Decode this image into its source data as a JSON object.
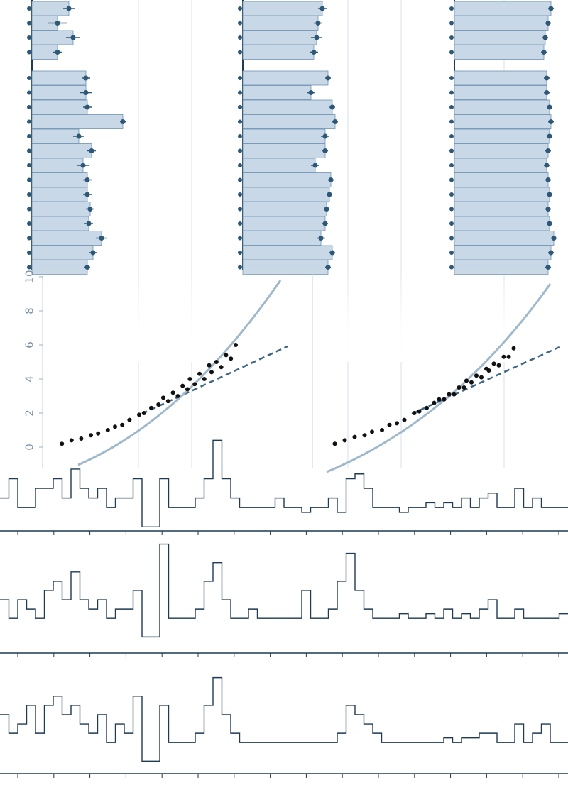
{
  "chart_data": [
    {
      "type": "hbar",
      "xlim": [
        0,
        10
      ],
      "values": [
        2.6,
        1.8,
        2.9,
        1.8,
        3.8,
        3.8,
        3.9,
        6.4,
        3.3,
        4.2,
        3.6,
        3.9,
        3.9,
        4.1,
        4.0,
        4.9,
        4.3,
        3.9
      ],
      "errors": [
        0.4,
        0.7,
        0.5,
        0.3,
        0.3,
        0.4,
        0.3,
        0.2,
        0.4,
        0.3,
        0.4,
        0.3,
        0.3,
        0.3,
        0.3,
        0.4,
        0.3,
        0.2
      ],
      "color": "#c9d8e6"
    },
    {
      "type": "hbar",
      "xlim": [
        0,
        10
      ],
      "values": [
        5.6,
        5.3,
        5.2,
        5.0,
        6.0,
        4.8,
        6.3,
        6.5,
        5.8,
        5.8,
        5.1,
        6.2,
        6.1,
        5.9,
        5.8,
        5.5,
        6.3,
        6.0
      ],
      "errors": [
        0.3,
        0.3,
        0.4,
        0.3,
        0.2,
        0.3,
        0.2,
        0.2,
        0.3,
        0.2,
        0.3,
        0.2,
        0.2,
        0.2,
        0.2,
        0.3,
        0.2,
        0.2
      ],
      "color": "#c9d8e6"
    },
    {
      "type": "hbar",
      "xlim": [
        0,
        10
      ],
      "values": [
        6.8,
        6.6,
        6.4,
        6.3,
        6.5,
        6.5,
        6.7,
        6.8,
        6.7,
        6.6,
        6.5,
        6.6,
        6.7,
        6.6,
        6.7,
        7.0,
        6.8,
        6.6
      ],
      "errors": [
        0.2,
        0.2,
        0.2,
        0.2,
        0.2,
        0.2,
        0.2,
        0.2,
        0.2,
        0.2,
        0.2,
        0.2,
        0.2,
        0.2,
        0.2,
        0.2,
        0.2,
        0.2
      ],
      "color": "#c9d8e6"
    },
    {
      "type": "scatter",
      "xlim": [
        0,
        10
      ],
      "ylim": [
        -1,
        10.5
      ],
      "yticks": [
        0,
        2,
        4,
        6,
        8,
        10
      ],
      "color": "#111111",
      "x": [
        0.8,
        1.2,
        1.6,
        2,
        2.3,
        2.7,
        3,
        3.3,
        3.6,
        4,
        4.2,
        4.5,
        4.8,
        5,
        5.2,
        5.4,
        5.6,
        5.8,
        6,
        6.1,
        6.3,
        6.5,
        6.7,
        6.9,
        7,
        7.2,
        7.4,
        7.6,
        7.8,
        8
      ],
      "y": [
        0.2,
        0.4,
        0.5,
        0.7,
        0.8,
        1.0,
        1.2,
        1.3,
        1.6,
        1.9,
        2.0,
        2.3,
        2.5,
        2.9,
        2.7,
        3.2,
        3.0,
        3.6,
        3.4,
        4.0,
        3.7,
        4.3,
        4.0,
        4.8,
        4.4,
        5.0,
        4.7,
        5.4,
        5.2,
        6.0
      ]
    },
    {
      "type": "scatter",
      "xlim": [
        0,
        10
      ],
      "ylim": [
        -1,
        10.5
      ],
      "color": "#111111",
      "x": [
        0.9,
        1.3,
        1.7,
        2.1,
        2.4,
        2.8,
        3.1,
        3.4,
        3.7,
        4.1,
        4.3,
        4.6,
        4.9,
        5.1,
        5.3,
        5.5,
        5.7,
        5.9,
        6.1,
        6.2,
        6.4,
        6.6,
        6.8,
        7,
        7.1,
        7.3,
        7.5,
        7.7,
        7.9,
        8.1
      ],
      "y": [
        0.2,
        0.4,
        0.6,
        0.7,
        0.9,
        1.0,
        1.3,
        1.4,
        1.6,
        2.0,
        2.1,
        2.3,
        2.6,
        2.8,
        2.8,
        3.1,
        3.1,
        3.5,
        3.5,
        3.9,
        3.8,
        4.2,
        4.1,
        4.6,
        4.5,
        4.9,
        4.8,
        5.3,
        5.3,
        5.8
      ]
    },
    {
      "type": "step",
      "ylim": [
        -1.2,
        9.5
      ],
      "color": "#1f3a52",
      "values": [
        2,
        4,
        1,
        1,
        3,
        3,
        4,
        2,
        5,
        3,
        2,
        3,
        1,
        2,
        2,
        4,
        -1,
        -1,
        4,
        1,
        1,
        1,
        2,
        4,
        8,
        4,
        2,
        1,
        1,
        1,
        1,
        2,
        1,
        1,
        0.5,
        1,
        1,
        2,
        0.5,
        4,
        4.5,
        3,
        1,
        1,
        1,
        0.5,
        1,
        1,
        1.5,
        1,
        1.5,
        1,
        2,
        1,
        2,
        2.5,
        1,
        1,
        3,
        1,
        2,
        1,
        1,
        1
      ]
    },
    {
      "type": "step",
      "ylim": [
        -1.2,
        9.5
      ],
      "color": "#1f3a52",
      "values": [
        3,
        1,
        3,
        2,
        1,
        4,
        5,
        3,
        6,
        3,
        2,
        3,
        1,
        2,
        2,
        4,
        -1,
        -1,
        9,
        1,
        1,
        1,
        2,
        5,
        7,
        3,
        1,
        1,
        2,
        1,
        1,
        1,
        1,
        1,
        4,
        1,
        1,
        2,
        5,
        8,
        4,
        2,
        1,
        1,
        1,
        1.5,
        1,
        1,
        1.5,
        1,
        2,
        1,
        1.5,
        1,
        2,
        3,
        1,
        1,
        2,
        1,
        1,
        1,
        1,
        1.5
      ]
    },
    {
      "type": "step",
      "ylim": [
        -1.2,
        9.5
      ],
      "color": "#1f3a52",
      "values": [
        4,
        2,
        3,
        5,
        2,
        5,
        6,
        4,
        5,
        3,
        2,
        4,
        1,
        3,
        2,
        6,
        -1,
        -1,
        5,
        1,
        1,
        1,
        2,
        5,
        8,
        4,
        2,
        1,
        1,
        1,
        1,
        1,
        1,
        1,
        1,
        1,
        1,
        1,
        2,
        5,
        4,
        3,
        2,
        1,
        1,
        1,
        1,
        1,
        1,
        1,
        1.5,
        1,
        1.5,
        1.5,
        2,
        2,
        1,
        1,
        3,
        1,
        2,
        3,
        1,
        1
      ]
    }
  ]
}
